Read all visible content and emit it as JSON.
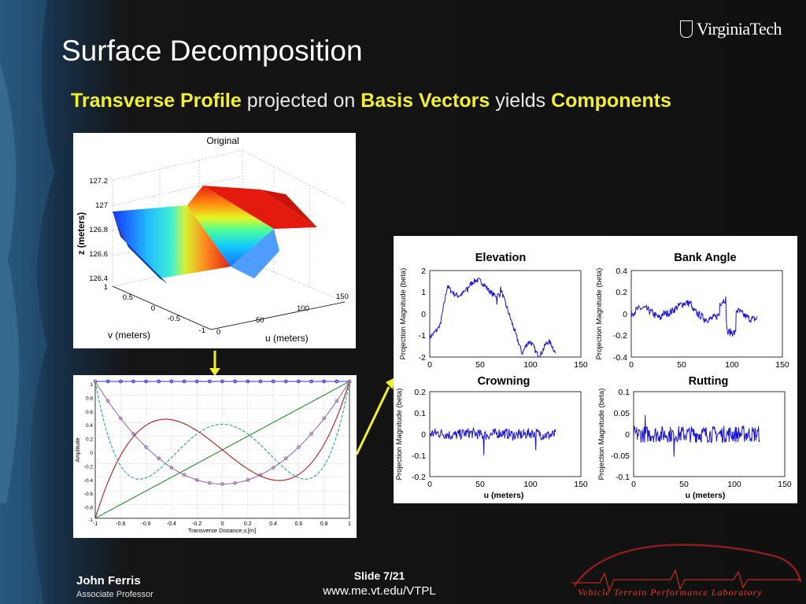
{
  "slide": {
    "title": "Surface Decomposition",
    "subtitle": {
      "part1": "Transverse Profile",
      "part2": " projected on ",
      "part3": "Basis Vectors",
      "part4": " yields ",
      "part5": "Components"
    },
    "logo_text": "VirginiaTech",
    "author": "John Ferris",
    "author_role": "Associate Professor",
    "slide_number": "Slide 7/21",
    "url": "www.me.vt.edu/VTPL",
    "lab_name": "Vehicle Terrain Performance Laboratory",
    "accent_color": "#f2ef2f"
  },
  "original_plot": {
    "title": "Original",
    "zlabel": "z (meters)",
    "vlabel": "v (meters)",
    "ulabel": "u (meters)",
    "z_ticks": [
      "127.2",
      "127",
      "126.8",
      "126.6",
      "126.4"
    ],
    "v_ticks": [
      "1",
      "0.5",
      "0",
      "-0.5",
      "-1"
    ],
    "u_ticks": [
      "0",
      "50",
      "100",
      "150"
    ]
  },
  "basis_plot": {
    "xlabel": "Transverse Distance,v,[m]",
    "ylabel": "Amplitude",
    "x_ticks": [
      "-1",
      "-0.8",
      "-0.6",
      "-0.4",
      "-0.2",
      "0",
      "0.2",
      "0.4",
      "0.6",
      "0.8",
      "1"
    ],
    "y_ticks": [
      "1",
      "0.8",
      "0.6",
      "0.4",
      "0.2",
      "0",
      "-0.2",
      "-0.4",
      "-0.6",
      "-0.8",
      "-1"
    ]
  },
  "component_plots": {
    "ylabel": "Projection Magnitude (beta)",
    "xlabel": "u (meters)",
    "x_ticks": [
      "0",
      "50",
      "100",
      "150"
    ],
    "panels": [
      {
        "title": "Elevation",
        "y_ticks": [
          "2",
          "1",
          "0",
          "-1",
          "-2"
        ]
      },
      {
        "title": "Bank Angle",
        "y_ticks": [
          "0.4",
          "0.2",
          "0",
          "-0.2",
          "-0.4"
        ]
      },
      {
        "title": "Crowning",
        "y_ticks": [
          "0.2",
          "0.1",
          "0",
          "-0.1",
          "-0.2"
        ]
      },
      {
        "title": "Rutting",
        "y_ticks": [
          "0.1",
          "0.05",
          "0",
          "-0.05",
          "-0.1"
        ]
      }
    ]
  }
}
